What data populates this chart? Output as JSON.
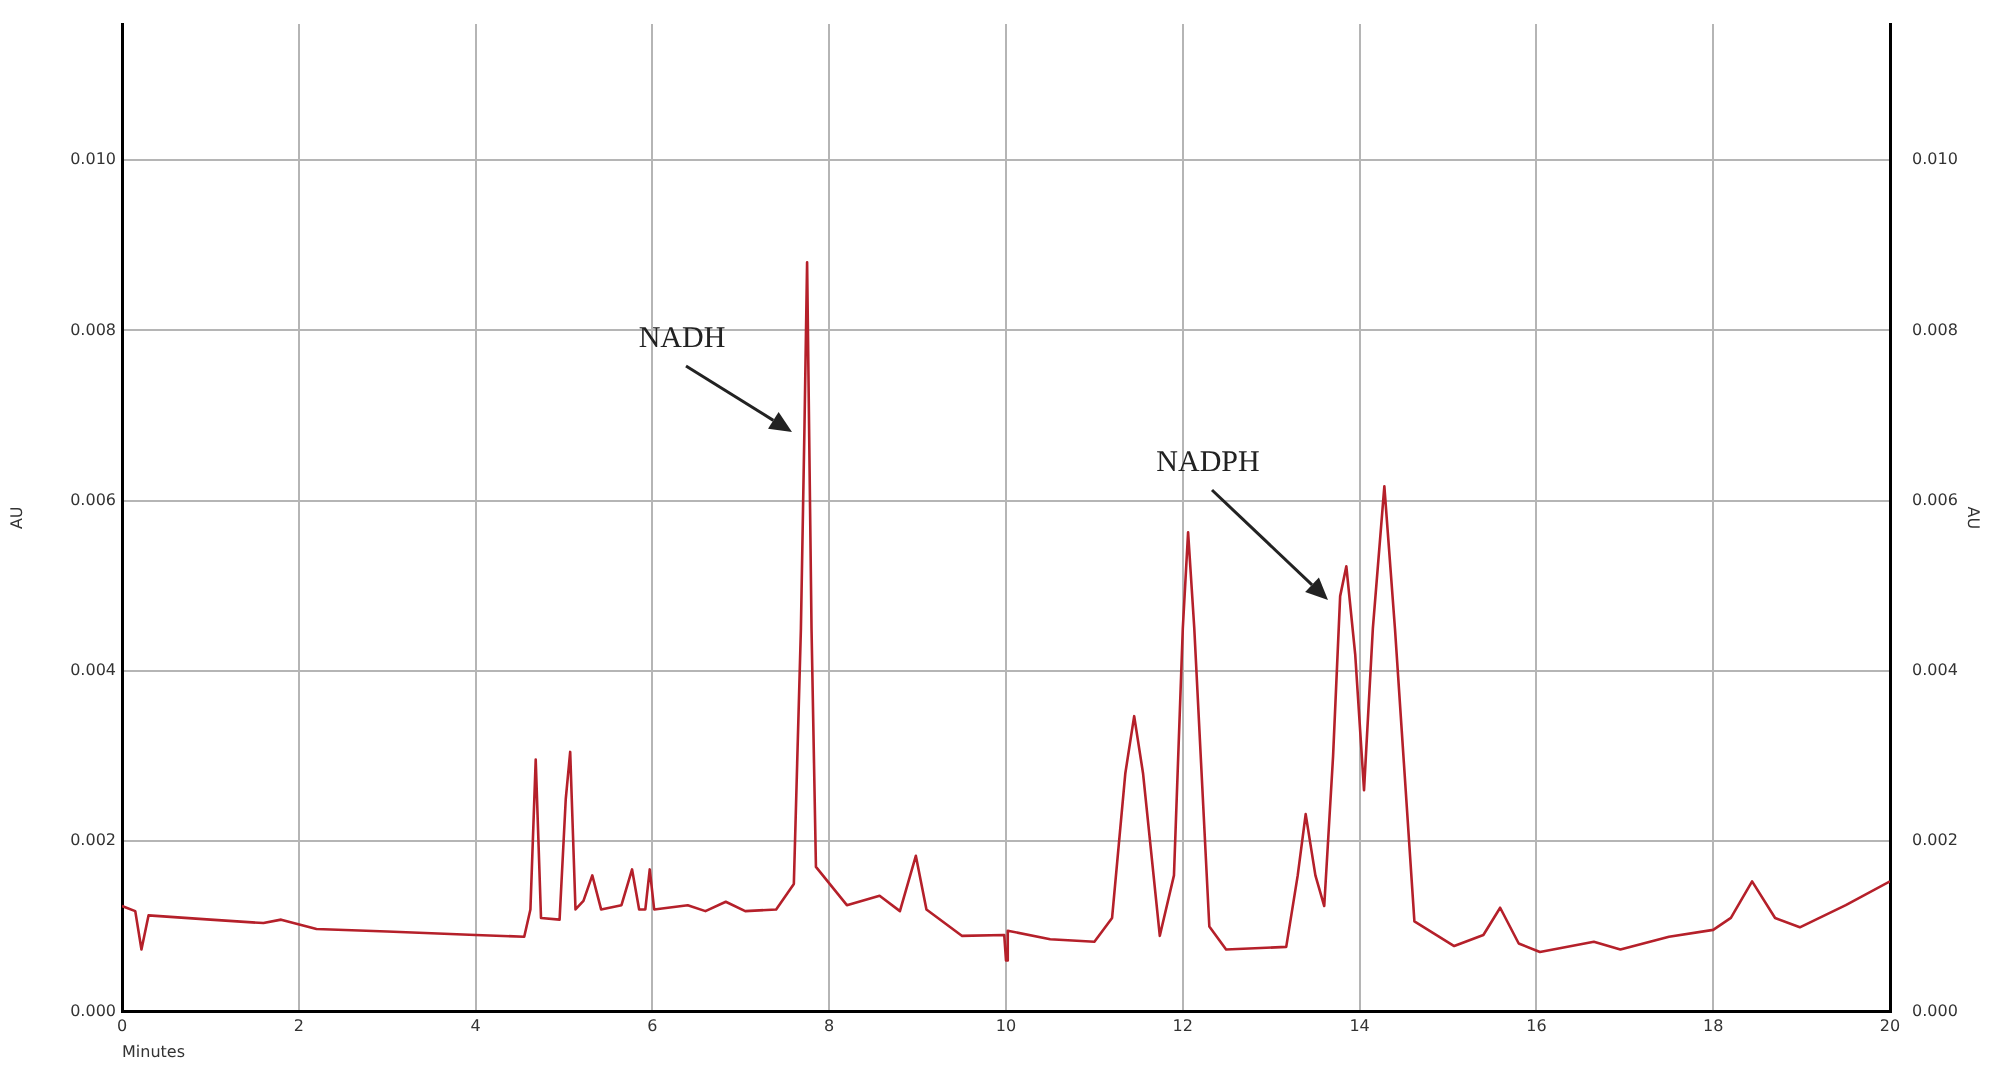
{
  "chart_data": {
    "type": "line",
    "xlabel": "Minutes",
    "ylabel": "AU",
    "y2label": "AU",
    "xlim": [
      0,
      20
    ],
    "xticks": [
      0,
      2,
      4,
      6,
      8,
      10,
      12,
      14,
      16,
      18,
      20
    ],
    "ylim": [
      0,
      0.0116
    ],
    "yticks": [
      {
        "value": 0,
        "label": "0.000"
      },
      {
        "value": 0.002,
        "label": "0.002"
      },
      {
        "value": 0.004,
        "label": "0.004"
      },
      {
        "value": 0.006,
        "label": "0.006"
      },
      {
        "value": 0.008,
        "label": "0.008"
      },
      {
        "value": 0.01,
        "label": "0.010"
      }
    ],
    "y2lim": [
      0,
      0.0116
    ],
    "y2ticks": [
      {
        "value": 0,
        "label": "0.000"
      },
      {
        "value": 0.002,
        "label": "0.002"
      },
      {
        "value": 0.004,
        "label": "0.004"
      },
      {
        "value": 0.006,
        "label": "0.006"
      },
      {
        "value": 0.008,
        "label": "0.008"
      },
      {
        "value": 0.01,
        "label": "0.010"
      }
    ],
    "grid": true,
    "legend": false,
    "marker": "none",
    "line_style": "solid",
    "annotations": [
      "NADH",
      "NADPH"
    ],
    "series": [
      {
        "color": "#b5202a",
        "x": [
          0,
          0.15,
          0.22,
          0.3,
          1,
          1.6,
          1.8,
          2.2,
          3,
          4,
          4.55,
          4.62,
          4.68,
          4.74,
          4.95,
          5.02,
          5.07,
          5.13,
          5.22,
          5.32,
          5.42,
          5.65,
          5.77,
          5.85,
          5.92,
          5.97,
          6.02,
          6.4,
          6.6,
          6.83,
          7.05,
          7.4,
          7.6,
          7.68,
          7.72,
          7.75,
          7.8,
          7.85,
          8.2,
          8.57,
          8.8,
          8.98,
          9.1,
          9.5,
          9.98,
          10,
          10.02,
          10.5,
          11,
          11.2,
          11.35,
          11.45,
          11.55,
          11.74,
          11.9,
          12,
          12.06,
          12.13,
          12.3,
          12.49,
          13.17,
          13.3,
          13.39,
          13.5,
          13.6,
          13.7,
          13.78,
          13.85,
          13.95,
          14.05,
          14.15,
          14.28,
          14.4,
          14.62,
          15.07,
          15.4,
          15.59,
          15.8,
          16.04,
          16.65,
          16.95,
          17.5,
          18,
          18.2,
          18.44,
          18.7,
          18.98,
          19.5,
          20
        ],
        "values": [
          0.00124,
          0.00118,
          0.00073,
          0.00113,
          0.00108,
          0.00104,
          0.00108,
          0.00097,
          0.00094,
          0.0009,
          0.00088,
          0.0012,
          0.00296,
          0.0011,
          0.00108,
          0.0025,
          0.00305,
          0.0012,
          0.0013,
          0.0016,
          0.0012,
          0.00125,
          0.00167,
          0.0012,
          0.0012,
          0.00167,
          0.0012,
          0.00125,
          0.00118,
          0.00129,
          0.00118,
          0.0012,
          0.0015,
          0.0045,
          0.00685,
          0.0088,
          0.0045,
          0.0017,
          0.00125,
          0.00136,
          0.00118,
          0.00183,
          0.0012,
          0.00089,
          0.0009,
          0.0006,
          0.00095,
          0.00085,
          0.00082,
          0.0011,
          0.0028,
          0.00347,
          0.0028,
          0.00089,
          0.0016,
          0.0045,
          0.00563,
          0.0045,
          0.001,
          0.00073,
          0.00076,
          0.0016,
          0.00232,
          0.0016,
          0.00124,
          0.003,
          0.00488,
          0.00523,
          0.0042,
          0.0026,
          0.0045,
          0.00617,
          0.0045,
          0.00106,
          0.00077,
          0.0009,
          0.00122,
          0.0008,
          0.0007,
          0.00082,
          0.00073,
          0.00088,
          0.00096,
          0.0011,
          0.00153,
          0.0011,
          0.00099,
          0.00125,
          0.00153
        ]
      }
    ]
  }
}
